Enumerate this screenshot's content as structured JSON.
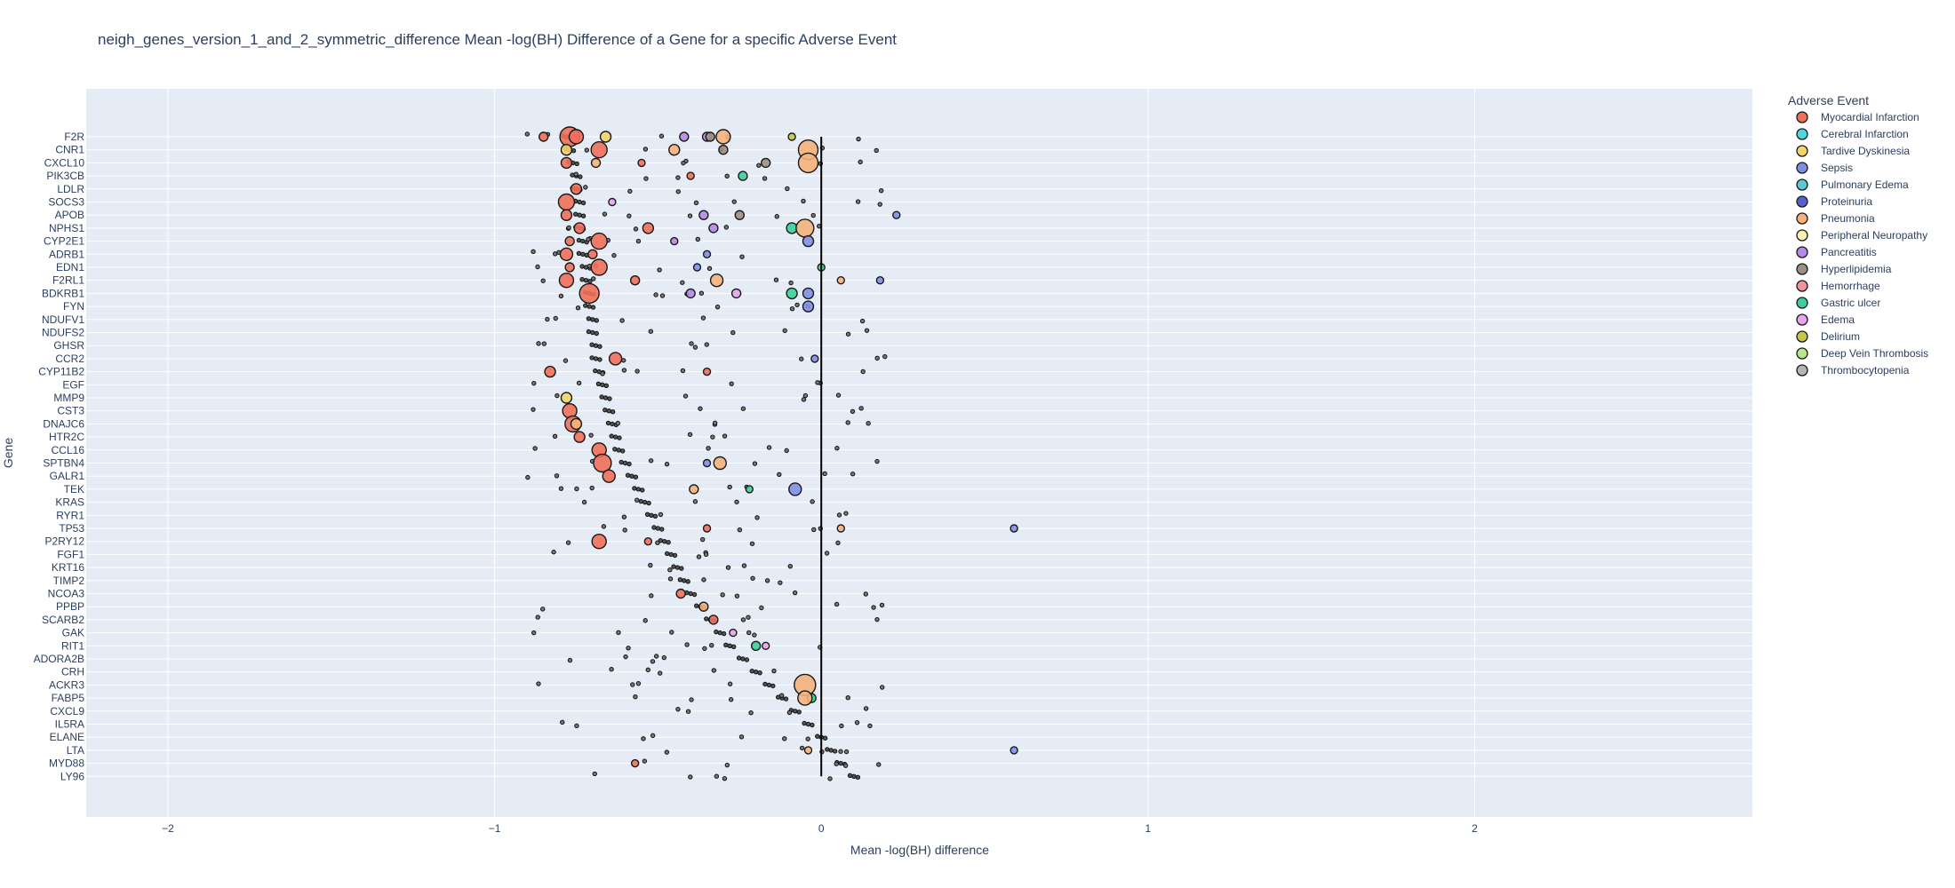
{
  "chart_data": {
    "type": "scatter",
    "title": "neigh_genes_version_1_and_2_symmetric_difference Mean -log(BH) Difference of a Gene for a specific Adverse Event",
    "xlabel": "Mean -log(BH) difference",
    "ylabel": "Gene",
    "xlim": [
      -2.25,
      2.85
    ],
    "x_ticks": [
      -2,
      -1,
      0,
      1,
      2
    ],
    "x_tick_labels": [
      "−2",
      "−1",
      "0",
      "1",
      "2"
    ],
    "grid": true,
    "legend_title": "Adverse Event",
    "legend_position": "right",
    "genes": [
      "F2R",
      "CNR1",
      "CXCL10",
      "PIK3CB",
      "LDLR",
      "SOCS3",
      "APOB",
      "NPHS1",
      "CYP2E1",
      "ADRB1",
      "EDN1",
      "F2RL1",
      "BDKRB1",
      "FYN",
      "NDUFV1",
      "NDUFS2",
      "GHSR",
      "CCR2",
      "CYP11B2",
      "EGF",
      "MMP9",
      "CST3",
      "DNAJC6",
      "HTR2C",
      "CCL16",
      "SPTBN4",
      "GALR1",
      "TEK",
      "KRAS",
      "RYR1",
      "TP53",
      "P2RY12",
      "FGF1",
      "KRT16",
      "TIMP2",
      "NCOA3",
      "PPBP",
      "SCARB2",
      "GAK",
      "RIT1",
      "ADORA2B",
      "CRH",
      "ACKR3",
      "FABP5",
      "CXCL9",
      "IL5RA",
      "ELANE",
      "LTA",
      "MYD88",
      "LY96"
    ],
    "gene_mean": [
      -0.78,
      -0.77,
      -0.76,
      -0.75,
      -0.75,
      -0.74,
      -0.74,
      -0.74,
      -0.73,
      -0.73,
      -0.72,
      -0.72,
      -0.71,
      -0.71,
      -0.7,
      -0.7,
      -0.69,
      -0.69,
      -0.68,
      -0.67,
      -0.66,
      -0.65,
      -0.64,
      -0.63,
      -0.62,
      -0.6,
      -0.58,
      -0.56,
      -0.54,
      -0.52,
      -0.5,
      -0.48,
      -0.46,
      -0.44,
      -0.42,
      -0.4,
      -0.37,
      -0.34,
      -0.31,
      -0.28,
      -0.24,
      -0.2,
      -0.16,
      -0.12,
      -0.08,
      -0.04,
      0.0,
      0.03,
      0.06,
      0.1
    ],
    "series": [
      {
        "name": "Myocardial Infarction",
        "color": "#ef6f5a"
      },
      {
        "name": "Cerebral Infarction",
        "color": "#4fd6dd"
      },
      {
        "name": "Tardive Dyskinesia",
        "color": "#f2d469"
      },
      {
        "name": "Sepsis",
        "color": "#7f8fe8"
      },
      {
        "name": "Pulmonary Edema",
        "color": "#5bc9d2"
      },
      {
        "name": "Proteinuria",
        "color": "#5462c9"
      },
      {
        "name": "Pneumonia",
        "color": "#f5b27c"
      },
      {
        "name": "Peripheral Neuropathy",
        "color": "#faf0b4"
      },
      {
        "name": "Pancreatitis",
        "color": "#b58ae8"
      },
      {
        "name": "Hyperlipidemia",
        "color": "#9c9084"
      },
      {
        "name": "Hemorrhage",
        "color": "#f0939b"
      },
      {
        "name": "Gastric ulcer",
        "color": "#3ccf9a"
      },
      {
        "name": "Edema",
        "color": "#e6a4ea"
      },
      {
        "name": "Delirium",
        "color": "#c5c847"
      },
      {
        "name": "Deep Vein Thrombosis",
        "color": "#b7e88c"
      },
      {
        "name": "Thrombocytopenia",
        "color": "#b3b6b3"
      }
    ],
    "points": [
      {
        "gene": "F2R",
        "x": -0.77,
        "s": "Myocardial Infarction",
        "r": 11
      },
      {
        "gene": "F2R",
        "x": -0.75,
        "s": "Myocardial Infarction",
        "r": 8
      },
      {
        "gene": "F2R",
        "x": -0.66,
        "s": "Tardive Dyskinesia",
        "r": 6
      },
      {
        "gene": "F2R",
        "x": -0.85,
        "s": "Myocardial Infarction",
        "r": 5
      },
      {
        "gene": "F2R",
        "x": -0.42,
        "s": "Pancreatitis",
        "r": 5
      },
      {
        "gene": "F2R",
        "x": -0.35,
        "s": "Pancreatitis",
        "r": 5
      },
      {
        "gene": "F2R",
        "x": -0.3,
        "s": "Pneumonia",
        "r": 8
      },
      {
        "gene": "F2R",
        "x": -0.34,
        "s": "Hyperlipidemia",
        "r": 5
      },
      {
        "gene": "F2R",
        "x": -0.09,
        "s": "Delirium",
        "r": 4
      },
      {
        "gene": "CNR1",
        "x": -0.78,
        "s": "Tardive Dyskinesia",
        "r": 6
      },
      {
        "gene": "CNR1",
        "x": -0.68,
        "s": "Myocardial Infarction",
        "r": 9
      },
      {
        "gene": "CNR1",
        "x": -0.45,
        "s": "Pneumonia",
        "r": 6
      },
      {
        "gene": "CNR1",
        "x": -0.3,
        "s": "Hyperlipidemia",
        "r": 5
      },
      {
        "gene": "CNR1",
        "x": -0.04,
        "s": "Pneumonia",
        "r": 11
      },
      {
        "gene": "CXCL10",
        "x": -0.78,
        "s": "Myocardial Infarction",
        "r": 6
      },
      {
        "gene": "CXCL10",
        "x": -0.69,
        "s": "Pneumonia",
        "r": 5
      },
      {
        "gene": "CXCL10",
        "x": -0.55,
        "s": "Myocardial Infarction",
        "r": 4
      },
      {
        "gene": "CXCL10",
        "x": -0.17,
        "s": "Hyperlipidemia",
        "r": 5
      },
      {
        "gene": "CXCL10",
        "x": -0.04,
        "s": "Pneumonia",
        "r": 11
      },
      {
        "gene": "PIK3CB",
        "x": -0.24,
        "s": "Gastric ulcer",
        "r": 5
      },
      {
        "gene": "PIK3CB",
        "x": -0.4,
        "s": "Myocardial Infarction",
        "r": 4
      },
      {
        "gene": "LDLR",
        "x": -0.75,
        "s": "Myocardial Infarction",
        "r": 6
      },
      {
        "gene": "SOCS3",
        "x": -0.78,
        "s": "Myocardial Infarction",
        "r": 9
      },
      {
        "gene": "SOCS3",
        "x": -0.64,
        "s": "Edema",
        "r": 4
      },
      {
        "gene": "APOB",
        "x": -0.78,
        "s": "Myocardial Infarction",
        "r": 6
      },
      {
        "gene": "APOB",
        "x": -0.36,
        "s": "Pancreatitis",
        "r": 5
      },
      {
        "gene": "APOB",
        "x": -0.25,
        "s": "Hyperlipidemia",
        "r": 5
      },
      {
        "gene": "APOB",
        "x": 0.23,
        "s": "Sepsis",
        "r": 4
      },
      {
        "gene": "NPHS1",
        "x": -0.74,
        "s": "Myocardial Infarction",
        "r": 6
      },
      {
        "gene": "NPHS1",
        "x": -0.53,
        "s": "Myocardial Infarction",
        "r": 6
      },
      {
        "gene": "NPHS1",
        "x": -0.33,
        "s": "Pancreatitis",
        "r": 5
      },
      {
        "gene": "NPHS1",
        "x": -0.09,
        "s": "Gastric ulcer",
        "r": 6
      },
      {
        "gene": "NPHS1",
        "x": -0.05,
        "s": "Pneumonia",
        "r": 10
      },
      {
        "gene": "CYP2E1",
        "x": -0.77,
        "s": "Myocardial Infarction",
        "r": 5
      },
      {
        "gene": "CYP2E1",
        "x": -0.68,
        "s": "Myocardial Infarction",
        "r": 9
      },
      {
        "gene": "CYP2E1",
        "x": -0.45,
        "s": "Pancreatitis",
        "r": 4
      },
      {
        "gene": "CYP2E1",
        "x": -0.04,
        "s": "Sepsis",
        "r": 6
      },
      {
        "gene": "ADRB1",
        "x": -0.78,
        "s": "Myocardial Infarction",
        "r": 7
      },
      {
        "gene": "ADRB1",
        "x": -0.7,
        "s": "Myocardial Infarction",
        "r": 5
      },
      {
        "gene": "ADRB1",
        "x": -0.35,
        "s": "Sepsis",
        "r": 4
      },
      {
        "gene": "EDN1",
        "x": -0.68,
        "s": "Myocardial Infarction",
        "r": 9
      },
      {
        "gene": "EDN1",
        "x": -0.77,
        "s": "Myocardial Infarction",
        "r": 5
      },
      {
        "gene": "EDN1",
        "x": -0.38,
        "s": "Sepsis",
        "r": 4
      },
      {
        "gene": "EDN1",
        "x": 0.0,
        "s": "Gastric ulcer",
        "r": 4
      },
      {
        "gene": "F2RL1",
        "x": -0.78,
        "s": "Myocardial Infarction",
        "r": 8
      },
      {
        "gene": "F2RL1",
        "x": -0.57,
        "s": "Myocardial Infarction",
        "r": 5
      },
      {
        "gene": "F2RL1",
        "x": -0.32,
        "s": "Pneumonia",
        "r": 7
      },
      {
        "gene": "F2RL1",
        "x": 0.06,
        "s": "Pneumonia",
        "r": 4
      },
      {
        "gene": "F2RL1",
        "x": 0.18,
        "s": "Sepsis",
        "r": 4
      },
      {
        "gene": "BDKRB1",
        "x": -0.71,
        "s": "Myocardial Infarction",
        "r": 11
      },
      {
        "gene": "BDKRB1",
        "x": -0.4,
        "s": "Pancreatitis",
        "r": 5
      },
      {
        "gene": "BDKRB1",
        "x": -0.26,
        "s": "Edema",
        "r": 5
      },
      {
        "gene": "BDKRB1",
        "x": -0.09,
        "s": "Gastric ulcer",
        "r": 6
      },
      {
        "gene": "BDKRB1",
        "x": -0.04,
        "s": "Sepsis",
        "r": 6
      },
      {
        "gene": "FYN",
        "x": -0.04,
        "s": "Sepsis",
        "r": 6
      },
      {
        "gene": "CCR2",
        "x": -0.63,
        "s": "Myocardial Infarction",
        "r": 7
      },
      {
        "gene": "CCR2",
        "x": -0.02,
        "s": "Sepsis",
        "r": 4
      },
      {
        "gene": "CYP11B2",
        "x": -0.83,
        "s": "Myocardial Infarction",
        "r": 6
      },
      {
        "gene": "CYP11B2",
        "x": -0.35,
        "s": "Myocardial Infarction",
        "r": 4
      },
      {
        "gene": "MMP9",
        "x": -0.78,
        "s": "Tardive Dyskinesia",
        "r": 6
      },
      {
        "gene": "CST3",
        "x": -0.77,
        "s": "Myocardial Infarction",
        "r": 8
      },
      {
        "gene": "DNAJC6",
        "x": -0.76,
        "s": "Myocardial Infarction",
        "r": 9
      },
      {
        "gene": "DNAJC6",
        "x": -0.75,
        "s": "Pneumonia",
        "r": 6
      },
      {
        "gene": "HTR2C",
        "x": -0.74,
        "s": "Myocardial Infarction",
        "r": 6
      },
      {
        "gene": "CCL16",
        "x": -0.68,
        "s": "Myocardial Infarction",
        "r": 8
      },
      {
        "gene": "SPTBN4",
        "x": -0.67,
        "s": "Myocardial Infarction",
        "r": 10
      },
      {
        "gene": "SPTBN4",
        "x": -0.31,
        "s": "Pneumonia",
        "r": 7
      },
      {
        "gene": "SPTBN4",
        "x": -0.35,
        "s": "Sepsis",
        "r": 4
      },
      {
        "gene": "GALR1",
        "x": -0.65,
        "s": "Myocardial Infarction",
        "r": 7
      },
      {
        "gene": "TEK",
        "x": -0.39,
        "s": "Pneumonia",
        "r": 5
      },
      {
        "gene": "TEK",
        "x": -0.22,
        "s": "Gastric ulcer",
        "r": 4
      },
      {
        "gene": "TEK",
        "x": -0.08,
        "s": "Sepsis",
        "r": 7
      },
      {
        "gene": "TP53",
        "x": -0.35,
        "s": "Myocardial Infarction",
        "r": 4
      },
      {
        "gene": "TP53",
        "x": 0.06,
        "s": "Pneumonia",
        "r": 4
      },
      {
        "gene": "P2RY12",
        "x": -0.68,
        "s": "Myocardial Infarction",
        "r": 8
      },
      {
        "gene": "P2RY12",
        "x": -0.53,
        "s": "Myocardial Infarction",
        "r": 4
      },
      {
        "gene": "NCOA3",
        "x": -0.43,
        "s": "Myocardial Infarction",
        "r": 5
      },
      {
        "gene": "PPBP",
        "x": -0.36,
        "s": "Pneumonia",
        "r": 5
      },
      {
        "gene": "SCARB2",
        "x": -0.33,
        "s": "Myocardial Infarction",
        "r": 5
      },
      {
        "gene": "GAK",
        "x": -0.27,
        "s": "Edema",
        "r": 4
      },
      {
        "gene": "RIT1",
        "x": -0.2,
        "s": "Gastric ulcer",
        "r": 5
      },
      {
        "gene": "RIT1",
        "x": -0.17,
        "s": "Edema",
        "r": 4
      },
      {
        "gene": "ACKR3",
        "x": -0.05,
        "s": "Pneumonia",
        "r": 12
      },
      {
        "gene": "FABP5",
        "x": -0.03,
        "s": "Gastric ulcer",
        "r": 5
      },
      {
        "gene": "FABP5",
        "x": -0.05,
        "s": "Pneumonia",
        "r": 8
      },
      {
        "gene": "LTA",
        "x": -0.04,
        "s": "Pneumonia",
        "r": 4
      },
      {
        "gene": "LTA",
        "x": 0.59,
        "s": "Sepsis",
        "r": 4
      },
      {
        "gene": "MYD88",
        "x": -0.57,
        "s": "Myocardial Infarction",
        "r": 4
      },
      {
        "gene": "TP53",
        "x": 0.59,
        "s": "Sepsis",
        "r": 4
      }
    ]
  }
}
